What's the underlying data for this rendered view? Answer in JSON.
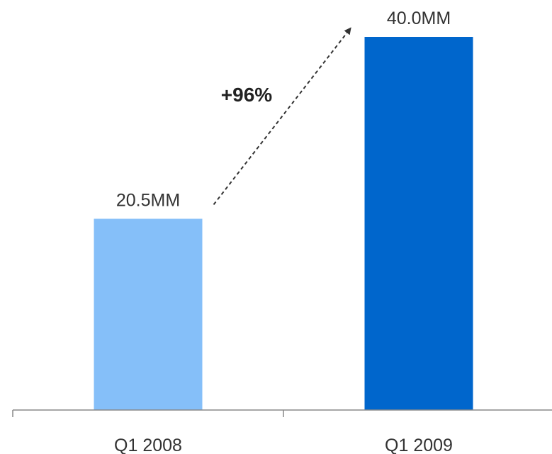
{
  "chart_data": {
    "type": "bar",
    "categories": [
      "Q1 2008",
      "Q1 2009"
    ],
    "values": [
      20.5,
      40.0
    ],
    "value_labels": [
      "20.5MM",
      "40.0MM"
    ],
    "unit": "MM",
    "bar_colors": [
      "#85bff9",
      "#0066cc"
    ],
    "axis_color": "#888888",
    "annotation": {
      "text": "+96%",
      "from": "Q1 2008",
      "to": "Q1 2009",
      "style": "dashed-arrow"
    },
    "ylim": [
      0,
      40.0
    ],
    "grid": false,
    "legend": "none",
    "title": "",
    "xlabel": "",
    "ylabel": ""
  }
}
